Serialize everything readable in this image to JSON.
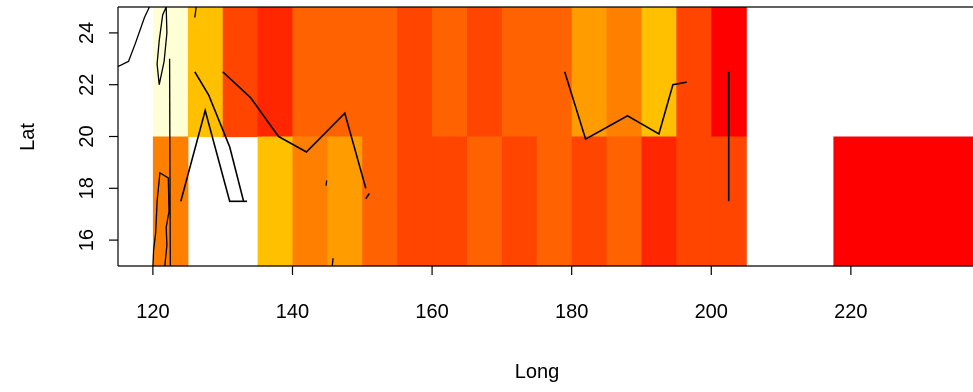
{
  "chart_data": {
    "type": "heatmap",
    "title": "",
    "xlabel": "Long",
    "ylabel": "Lat",
    "xlim": [
      115,
      237.5
    ],
    "ylim": [
      15,
      25
    ],
    "x_ticks": [
      "120",
      "140",
      "160",
      "180",
      "200",
      "220"
    ],
    "y_ticks": [
      "16",
      "18",
      "20",
      "22",
      "24"
    ],
    "grid": false,
    "legend": "none",
    "colors": {
      "1": "#FFFFD5",
      "2": "#FFC000",
      "3": "#FF9D00",
      "4": "#FF7F00",
      "5": "#FF6200",
      "6": "#FF4500",
      "7": "#FF2600",
      "8": "#FF0000"
    },
    "cells": [
      {
        "x0": 120,
        "x1": 125,
        "y0": 20,
        "y1": 25,
        "level": 1
      },
      {
        "x0": 125,
        "x1": 130,
        "y0": 20,
        "y1": 25,
        "level": 2
      },
      {
        "x0": 130,
        "x1": 135,
        "y0": 20,
        "y1": 25,
        "level": 6
      },
      {
        "x0": 135,
        "x1": 140,
        "y0": 20,
        "y1": 25,
        "level": 7
      },
      {
        "x0": 140,
        "x1": 145,
        "y0": 20,
        "y1": 25,
        "level": 5
      },
      {
        "x0": 145,
        "x1": 150,
        "y0": 20,
        "y1": 25,
        "level": 5
      },
      {
        "x0": 150,
        "x1": 155,
        "y0": 20,
        "y1": 25,
        "level": 5
      },
      {
        "x0": 155,
        "x1": 160,
        "y0": 20,
        "y1": 25,
        "level": 6
      },
      {
        "x0": 160,
        "x1": 165,
        "y0": 20,
        "y1": 25,
        "level": 5
      },
      {
        "x0": 165,
        "x1": 170,
        "y0": 20,
        "y1": 25,
        "level": 6
      },
      {
        "x0": 170,
        "x1": 175,
        "y0": 20,
        "y1": 25,
        "level": 5
      },
      {
        "x0": 175,
        "x1": 180,
        "y0": 20,
        "y1": 25,
        "level": 5
      },
      {
        "x0": 180,
        "x1": 185,
        "y0": 20,
        "y1": 25,
        "level": 3
      },
      {
        "x0": 185,
        "x1": 190,
        "y0": 20,
        "y1": 25,
        "level": 4
      },
      {
        "x0": 190,
        "x1": 195,
        "y0": 20,
        "y1": 25,
        "level": 2
      },
      {
        "x0": 195,
        "x1": 200,
        "y0": 20,
        "y1": 25,
        "level": 6
      },
      {
        "x0": 200,
        "x1": 205,
        "y0": 20,
        "y1": 25,
        "level": 8
      },
      {
        "x0": 120,
        "x1": 125,
        "y0": 15,
        "y1": 20,
        "level": 4
      },
      {
        "x0": 135,
        "x1": 140,
        "y0": 15,
        "y1": 20,
        "level": 2
      },
      {
        "x0": 140,
        "x1": 145,
        "y0": 15,
        "y1": 20,
        "level": 4
      },
      {
        "x0": 145,
        "x1": 150,
        "y0": 15,
        "y1": 20,
        "level": 3
      },
      {
        "x0": 150,
        "x1": 155,
        "y0": 15,
        "y1": 20,
        "level": 5
      },
      {
        "x0": 155,
        "x1": 160,
        "y0": 15,
        "y1": 20,
        "level": 6
      },
      {
        "x0": 160,
        "x1": 165,
        "y0": 15,
        "y1": 20,
        "level": 6
      },
      {
        "x0": 165,
        "x1": 170,
        "y0": 15,
        "y1": 20,
        "level": 5
      },
      {
        "x0": 170,
        "x1": 175,
        "y0": 15,
        "y1": 20,
        "level": 6
      },
      {
        "x0": 175,
        "x1": 180,
        "y0": 15,
        "y1": 20,
        "level": 5
      },
      {
        "x0": 180,
        "x1": 185,
        "y0": 15,
        "y1": 20,
        "level": 6
      },
      {
        "x0": 185,
        "x1": 190,
        "y0": 15,
        "y1": 20,
        "level": 5
      },
      {
        "x0": 190,
        "x1": 195,
        "y0": 15,
        "y1": 20,
        "level": 7
      },
      {
        "x0": 195,
        "x1": 200,
        "y0": 15,
        "y1": 20,
        "level": 6
      },
      {
        "x0": 200,
        "x1": 205,
        "y0": 15,
        "y1": 20,
        "level": 6
      },
      {
        "x0": 217.5,
        "x1": 237.5,
        "y0": 15,
        "y1": 20,
        "level": 8
      }
    ],
    "overlay_lines": [
      [
        [
          126,
          22.5
        ],
        [
          128,
          21.6
        ],
        [
          131,
          19.6
        ],
        [
          133,
          17.5
        ]
      ],
      [
        [
          130,
          22.5
        ],
        [
          134,
          21.5
        ],
        [
          138,
          20.0
        ],
        [
          142,
          19.4
        ],
        [
          147.5,
          20.9
        ],
        [
          150.5,
          18.0
        ]
      ],
      [
        [
          124,
          17.5
        ],
        [
          127.5,
          21.0
        ],
        [
          129,
          19.5
        ],
        [
          131,
          17.5
        ],
        [
          133.5,
          17.5
        ]
      ],
      [
        [
          150.5,
          17.6
        ],
        [
          151,
          17.8
        ]
      ],
      [
        [
          179,
          22.5
        ],
        [
          182,
          19.9
        ],
        [
          188,
          20.8
        ],
        [
          192.5,
          20.1
        ],
        [
          194.5,
          22.0
        ],
        [
          196.5,
          22.1
        ]
      ],
      [
        [
          202.5,
          22.5
        ],
        [
          202.5,
          17.5
        ]
      ]
    ],
    "coastlines": [
      [
        [
          115,
          22.7
        ],
        [
          116.5,
          22.9
        ],
        [
          117.5,
          23.6
        ],
        [
          118.8,
          24.6
        ],
        [
          119.5,
          25
        ]
      ],
      [
        [
          121.9,
          25
        ],
        [
          121.4,
          24.7
        ],
        [
          120.9,
          23.7
        ],
        [
          120.6,
          22.8
        ],
        [
          120.9,
          22.0
        ],
        [
          121.6,
          22.9
        ],
        [
          122.0,
          24.0
        ],
        [
          121.9,
          25
        ]
      ],
      [
        [
          121.6,
          18.5
        ],
        [
          121.0,
          18.6
        ],
        [
          120.6,
          17.5
        ],
        [
          120.4,
          16.3
        ],
        [
          120.1,
          15.6
        ],
        [
          120.0,
          15.0
        ]
      ],
      [
        [
          121.6,
          18.5
        ],
        [
          122.2,
          18.4
        ],
        [
          122.3,
          17.1
        ],
        [
          121.9,
          16.5
        ],
        [
          122.0,
          15.8
        ],
        [
          121.7,
          15.0
        ]
      ],
      [
        [
          122.5,
          15.0
        ],
        [
          122.4,
          23.0
        ]
      ],
      [
        [
          126.2,
          25
        ],
        [
          126.0,
          24.6
        ]
      ],
      [
        [
          145.7,
          15.0
        ],
        [
          145.8,
          15.3
        ]
      ],
      [
        [
          144.8,
          18.1
        ],
        [
          144.9,
          18.3
        ]
      ]
    ]
  }
}
